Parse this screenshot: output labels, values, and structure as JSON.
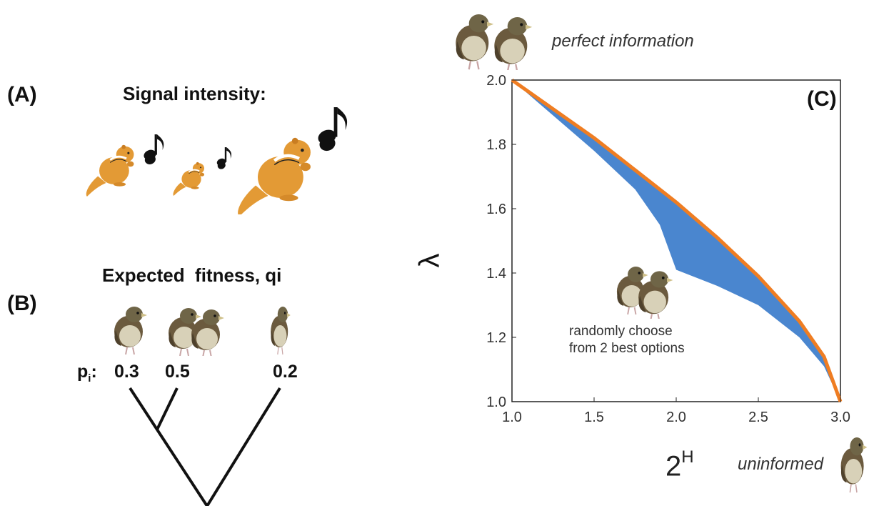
{
  "panel_a": {
    "label": "(A)",
    "heading": "Signal intensity:",
    "icon": "chipmunk-icon"
  },
  "panel_b": {
    "label": "(B)",
    "heading": "Expected  fitness, qi",
    "p_prefix": "p",
    "p_sub": "i",
    "p_colon": ":",
    "probabilities": [
      "0.3",
      "0.5",
      "0.2"
    ],
    "icon": "sparrow-icon"
  },
  "panel_c": {
    "label": "(C)",
    "top_note": "perfect information",
    "bottom_note": "uninformed",
    "annotation_line1": "randomly choose",
    "annotation_line2": "from 2 best options",
    "xlabel_base": "2",
    "xlabel_sup": "H",
    "ylabel": "λ",
    "x_ticks": [
      "1.0",
      "1.5",
      "2.0",
      "2.5",
      "3.0"
    ],
    "y_ticks": [
      "1.0",
      "1.2",
      "1.4",
      "1.6",
      "1.8",
      "2.0"
    ],
    "colors": {
      "fill": "#4a86cf",
      "bound": "#ef7d22"
    }
  },
  "chart_data": {
    "type": "area",
    "xlim": [
      1.0,
      3.0
    ],
    "ylim": [
      1.0,
      2.0
    ],
    "upper_bound": {
      "x": [
        1.0,
        1.25,
        1.5,
        1.75,
        2.0,
        2.25,
        2.5,
        2.75,
        2.9,
        3.0
      ],
      "y": [
        2.0,
        1.91,
        1.82,
        1.72,
        1.62,
        1.51,
        1.39,
        1.25,
        1.14,
        1.0
      ]
    },
    "lower_bound": {
      "x": [
        1.0,
        1.25,
        1.5,
        1.75,
        1.9,
        2.0,
        2.25,
        2.5,
        2.75,
        2.9,
        3.0
      ],
      "y": [
        2.0,
        1.89,
        1.78,
        1.66,
        1.55,
        1.41,
        1.36,
        1.3,
        1.2,
        1.11,
        1.0
      ]
    }
  }
}
